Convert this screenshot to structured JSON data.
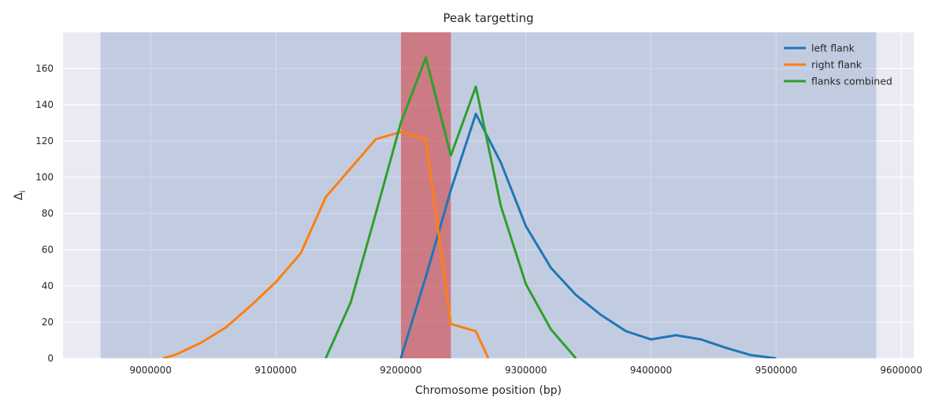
{
  "chart_data": {
    "type": "line",
    "title": "Peak targetting",
    "xlabel": "Chromosome position (bp)",
    "ylabel": "Δ",
    "ylabel_subscript": "i",
    "xlim": [
      8930000,
      9610000
    ],
    "ylim": [
      0,
      180
    ],
    "xticks": [
      9000000,
      9100000,
      9200000,
      9300000,
      9400000,
      9500000,
      9600000
    ],
    "yticks": [
      0,
      20,
      40,
      60,
      80,
      100,
      120,
      140,
      160
    ],
    "grid": true,
    "legend": "top-right",
    "spans": [
      {
        "role": "search-window",
        "x0": 8960000,
        "x1": 9580000,
        "color": "#4c72b0",
        "alpha": 0.25
      },
      {
        "role": "target-peak",
        "x0": 9200000,
        "x1": 9240000,
        "color": "#d62728",
        "alpha": 0.5
      }
    ],
    "series": [
      {
        "name": "left flank",
        "color": "#1f77b4",
        "x": [
          9200000,
          9220000,
          9240000,
          9260000,
          9280000,
          9300000,
          9320000,
          9340000,
          9360000,
          9380000,
          9400000,
          9420000,
          9440000,
          9460000,
          9480000,
          9500000
        ],
        "y": [
          0,
          45,
          93,
          135,
          108,
          73,
          50,
          35,
          24,
          15,
          10.5,
          12.8,
          10.5,
          5.8,
          1.8,
          0
        ]
      },
      {
        "name": "right flank",
        "color": "#ff7f0e",
        "x": [
          9010000,
          9020000,
          9040000,
          9060000,
          9080000,
          9100000,
          9120000,
          9140000,
          9160000,
          9180000,
          9200000,
          9220000,
          9240000,
          9260000,
          9270000
        ],
        "y": [
          0,
          2,
          8.5,
          17,
          29,
          42,
          58,
          89,
          105,
          121,
          125,
          121,
          19,
          15,
          0
        ]
      },
      {
        "name": "flanks combined",
        "color": "#2ca02c",
        "x": [
          9140000,
          9160000,
          9180000,
          9200000,
          9220000,
          9240000,
          9260000,
          9280000,
          9300000,
          9320000,
          9340000
        ],
        "y": [
          0,
          31,
          80,
          130,
          166,
          112,
          150,
          84,
          41,
          16,
          0
        ]
      }
    ]
  }
}
